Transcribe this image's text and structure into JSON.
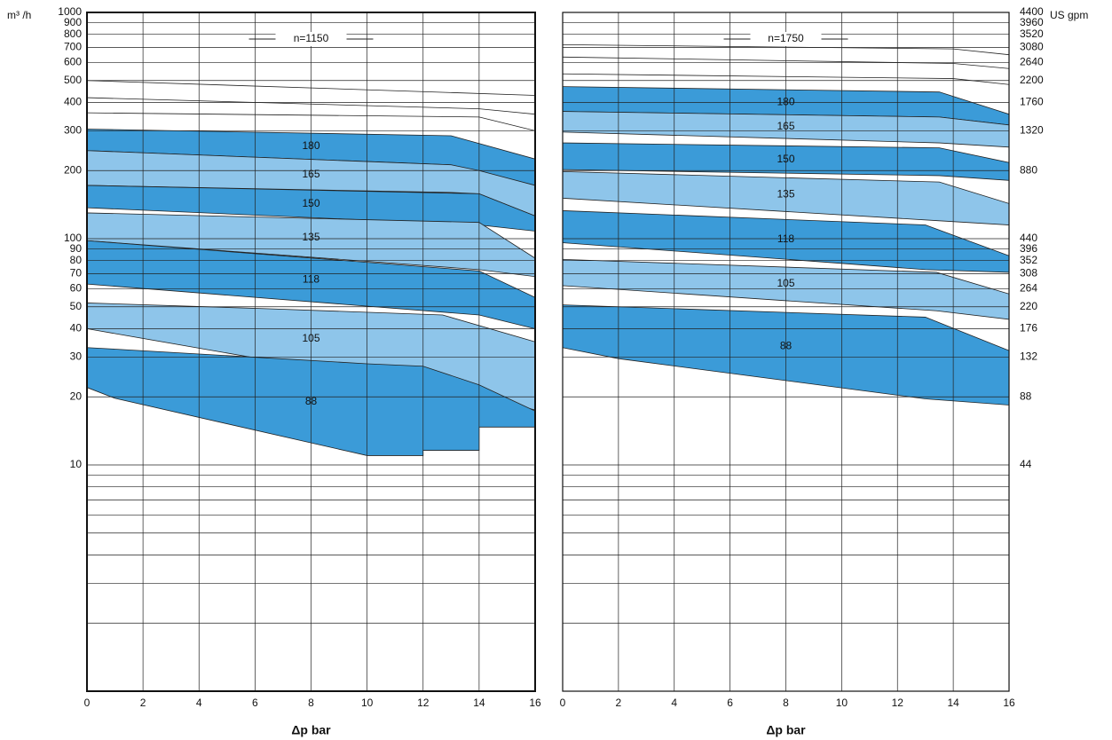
{
  "chart_data": [
    {
      "type": "band",
      "title": "n=1150",
      "ylabel": "m³ /h",
      "xlabel": "Δp bar",
      "xlim": [
        0,
        16
      ],
      "xticks": [
        0,
        2,
        4,
        6,
        8,
        10,
        12,
        14,
        16
      ],
      "ylim": [
        1,
        1000
      ],
      "log_y": true,
      "yticks": [
        10,
        20,
        30,
        40,
        50,
        60,
        70,
        80,
        90,
        100,
        200,
        300,
        400,
        500,
        600,
        700,
        800,
        900,
        1000
      ],
      "minor_gridlines": [
        2,
        3,
        4,
        5,
        6,
        7,
        8,
        9
      ],
      "lines": [
        {
          "x": [
            0,
            16
          ],
          "values": [
            500,
            430
          ]
        },
        {
          "x": [
            0,
            14,
            16
          ],
          "values": [
            420,
            375,
            355
          ]
        },
        {
          "x": [
            0,
            14,
            16
          ],
          "values": [
            360,
            345,
            300
          ]
        }
      ],
      "series": [
        {
          "name": "180",
          "color": "#3b9bd8",
          "x": [
            0,
            13,
            16
          ],
          "upper": [
            305,
            285,
            225
          ],
          "lower": [
            245,
            212,
            172
          ]
        },
        {
          "name": "165",
          "color": "#8ec5ea",
          "x": [
            0,
            13,
            14,
            16
          ],
          "upper": [
            245,
            212,
            200,
            172
          ],
          "lower": [
            172,
            160,
            158,
            126
          ]
        },
        {
          "name": "150",
          "color": "#3b9bd8",
          "x": [
            0,
            14,
            16
          ],
          "upper": [
            172,
            158,
            126
          ],
          "lower": [
            137,
            115,
            108
          ]
        },
        {
          "name": "135",
          "color": "#8ec5ea",
          "x": [
            0,
            14,
            16
          ],
          "upper": [
            130,
            118,
            82
          ],
          "lower": [
            98,
            73,
            68
          ]
        },
        {
          "name": "118",
          "color": "#3b9bd8",
          "x": [
            0,
            14,
            16
          ],
          "upper": [
            98,
            72,
            55
          ],
          "lower": [
            63,
            46,
            40
          ]
        },
        {
          "name": "105",
          "color": "#8ec5ea",
          "x": [
            0,
            6.5,
            12.7,
            16
          ],
          "upper": [
            52,
            49,
            46,
            35
          ],
          "lower": [
            40,
            29,
            22,
            17.5
          ]
        },
        {
          "name": "88",
          "color": "#3b9bd8",
          "x": [
            0,
            1,
            10,
            12,
            12,
            14,
            14,
            16
          ],
          "upper": [
            33,
            32.5,
            28,
            27.3,
            27.3,
            22.6,
            22.6,
            17.3
          ],
          "lower": [
            22,
            19.7,
            11,
            11,
            11.6,
            11.6,
            14.7,
            14.7
          ]
        }
      ]
    },
    {
      "type": "band",
      "title": "n=1750",
      "y2label": "US gpm",
      "xlabel": "Δp bar",
      "xlim": [
        0,
        16
      ],
      "xticks": [
        0,
        2,
        4,
        6,
        8,
        10,
        12,
        14,
        16
      ],
      "ylim": [
        1,
        1000
      ],
      "log_y": true,
      "y2lim": [
        4.4,
        4400
      ],
      "y2ticks": [
        44,
        88,
        132,
        176,
        220,
        264,
        308,
        352,
        396,
        440,
        880,
        1320,
        1760,
        2200,
        2640,
        3080,
        3520,
        3960,
        4400
      ],
      "minor_gridlines": [
        2,
        3,
        4,
        5,
        6,
        7,
        8,
        9
      ],
      "lines": [
        {
          "x": [
            0,
            14,
            16
          ],
          "values": [
            720,
            690,
            650
          ]
        },
        {
          "x": [
            0,
            14,
            16
          ],
          "values": [
            635,
            595,
            565
          ]
        },
        {
          "x": [
            0,
            14,
            16
          ],
          "values": [
            535,
            510,
            480
          ]
        }
      ],
      "series": [
        {
          "name": "180",
          "color": "#3b9bd8",
          "x": [
            0,
            13.5,
            16
          ],
          "upper": [
            470,
            445,
            355
          ],
          "lower": [
            365,
            345,
            318
          ]
        },
        {
          "name": "165",
          "color": "#8ec5ea",
          "x": [
            0,
            13.5,
            16
          ],
          "upper": [
            365,
            345,
            318
          ],
          "lower": [
            296,
            265,
            254
          ]
        },
        {
          "name": "150",
          "color": "#3b9bd8",
          "x": [
            0,
            13.5,
            16
          ],
          "upper": [
            265,
            252,
            217
          ],
          "lower": [
            202,
            190,
            181
          ]
        },
        {
          "name": "135",
          "color": "#8ec5ea",
          "x": [
            0,
            13.5,
            16
          ],
          "upper": [
            198,
            178,
            143
          ],
          "lower": [
            151,
            120,
            115
          ]
        },
        {
          "name": "118",
          "color": "#3b9bd8",
          "x": [
            0,
            13,
            16
          ],
          "upper": [
            133,
            115,
            84
          ],
          "lower": [
            96,
            73,
            71
          ]
        },
        {
          "name": "105",
          "color": "#8ec5ea",
          "x": [
            0,
            13.4,
            16
          ],
          "upper": [
            81,
            71,
            57
          ],
          "lower": [
            62,
            48,
            44
          ]
        },
        {
          "name": "88",
          "color": "#3b9bd8",
          "x": [
            0,
            2,
            13,
            16
          ],
          "upper": [
            51,
            50,
            45,
            32
          ],
          "lower": [
            33,
            29.5,
            19.6,
            18.4
          ]
        }
      ]
    }
  ]
}
